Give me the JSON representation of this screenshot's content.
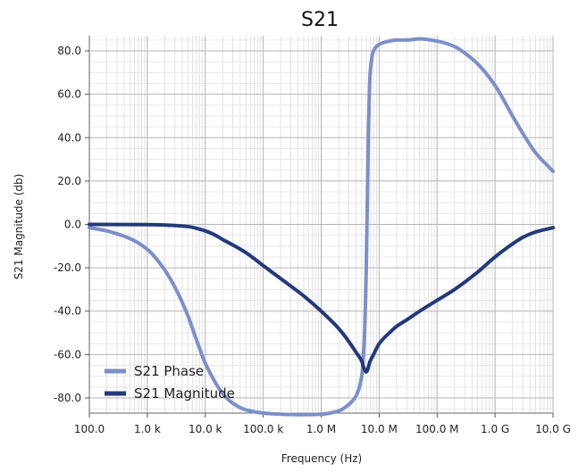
{
  "chart_data": {
    "type": "line",
    "title": "S21",
    "xlabel": "Frequency (Hz)",
    "ylabel": "S21 Magnitude (db)",
    "x_scale": "log",
    "xlim": [
      100,
      10000000000
    ],
    "ylim": [
      -87,
      87
    ],
    "grid": true,
    "legend_position": "bottom-left",
    "x_ticks": [
      {
        "value": 100,
        "label": "100.0"
      },
      {
        "value": 1000,
        "label": "1.0 k"
      },
      {
        "value": 10000,
        "label": "10.0 k"
      },
      {
        "value": 100000,
        "label": "100.0 k"
      },
      {
        "value": 1000000,
        "label": "1.0 M"
      },
      {
        "value": 10000000,
        "label": "10.0 M"
      },
      {
        "value": 100000000,
        "label": "100.0 M"
      },
      {
        "value": 1000000000,
        "label": "1.0 G"
      },
      {
        "value": 10000000000,
        "label": "10.0 G"
      }
    ],
    "y_ticks": [
      {
        "value": 80,
        "label": "80.0"
      },
      {
        "value": 60,
        "label": "60.0"
      },
      {
        "value": 40,
        "label": "40.0"
      },
      {
        "value": 20,
        "label": "20.0"
      },
      {
        "value": 0,
        "label": "0.0"
      },
      {
        "value": -20,
        "label": "-20.0"
      },
      {
        "value": -40,
        "label": "-40.0"
      },
      {
        "value": -60,
        "label": "-60.0"
      },
      {
        "value": -80,
        "label": "-80.0"
      }
    ],
    "series": [
      {
        "name": "S21 Phase",
        "color": "#7b8fc9",
        "x": [
          100,
          200,
          500,
          1000,
          2000,
          3000,
          5000,
          7000,
          10000,
          15000,
          20000,
          30000,
          50000,
          100000,
          200000,
          500000,
          1000000,
          2000000,
          3000000,
          4000000,
          5000000,
          5500000,
          6000000,
          6500000,
          7000000,
          8000000,
          10000000,
          15000000,
          20000000,
          30000000,
          50000000,
          100000000,
          200000000,
          300000000,
          500000000,
          1000000000,
          2000000000,
          3000000000,
          5000000000,
          10000000000
        ],
        "y": [
          -1.5,
          -3,
          -6.5,
          -11.5,
          -21,
          -29,
          -42,
          -53,
          -64,
          -73,
          -78,
          -82.5,
          -85.5,
          -87,
          -87.5,
          -87.7,
          -87.5,
          -86,
          -83,
          -79,
          -70,
          -55,
          -20,
          40,
          70,
          80,
          83,
          84.5,
          85,
          85,
          85.5,
          84.5,
          82,
          79,
          74,
          64,
          50,
          42,
          33,
          24.5
        ]
      },
      {
        "name": "S21 Magnitude",
        "color": "#23397a",
        "x": [
          100,
          1000,
          2000,
          5000,
          10000,
          15000,
          20000,
          30000,
          50000,
          100000,
          200000,
          500000,
          1000000,
          2000000,
          3000000,
          4000000,
          5000000,
          5500000,
          6000000,
          7000000,
          8000000,
          10000000,
          15000000,
          20000000,
          30000000,
          50000000,
          100000000,
          200000000,
          500000000,
          1000000000,
          2000000000,
          3000000000,
          5000000000,
          10000000000
        ],
        "y": [
          0,
          -0.1,
          -0.3,
          -1,
          -3,
          -5,
          -7,
          -9.5,
          -13,
          -19,
          -25,
          -33,
          -40,
          -48,
          -54,
          -59,
          -63,
          -66.5,
          -68,
          -63,
          -60,
          -55,
          -50,
          -47,
          -44,
          -40,
          -35,
          -30,
          -22,
          -15,
          -9,
          -6,
          -3.5,
          -1.5
        ]
      }
    ]
  }
}
